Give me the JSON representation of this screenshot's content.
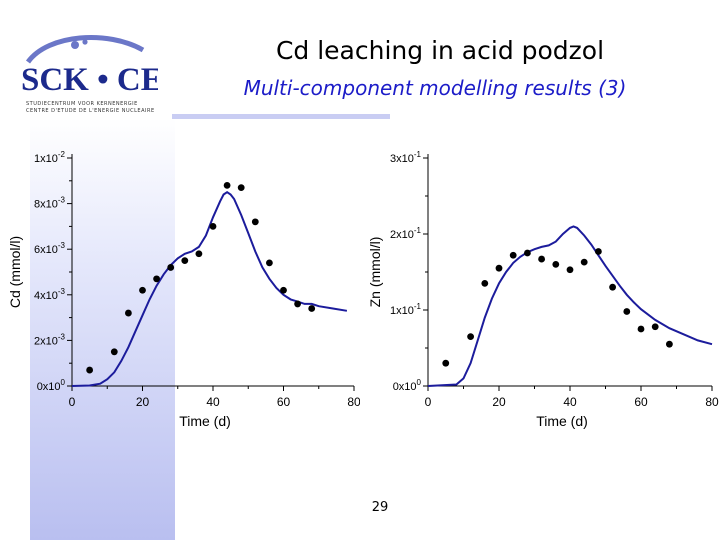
{
  "slide": {
    "title": "Cd leaching in acid podzol",
    "subtitle": "Multi-component modelling results (3)",
    "page_number": "29"
  },
  "logo": {
    "text": "SCK • CEN",
    "subtext_line1": "STUDIECENTRUM VOOR KERNENERGIE",
    "subtext_line2": "CENTRE D'ETUDE DE L'ENERGIE NUCLEAIRE",
    "colors": {
      "primary": "#1c2a8c",
      "accent": "#6b77c8"
    }
  },
  "colors": {
    "model_line": "#1c1c9c",
    "points": "#000000",
    "title": "#000000",
    "subtitle": "#1c1cc8",
    "band": "#b9bff0"
  },
  "chart_data": [
    {
      "type": "line",
      "xlabel": "Time (d)",
      "ylabel": "Cd (mmol/l)",
      "xlim": [
        0,
        80
      ],
      "ylim": [
        0,
        0.01
      ],
      "x_ticks": [
        0,
        20,
        40,
        60,
        80
      ],
      "x_tick_labels": [
        "0",
        "20",
        "40",
        "60",
        "80"
      ],
      "y_ticks": [
        0,
        0.002,
        0.004,
        0.006,
        0.008,
        0.01
      ],
      "y_tick_labels": [
        {
          "mant": "0x10",
          "exp": "0"
        },
        {
          "mant": "2x10",
          "exp": "-3"
        },
        {
          "mant": "4x10",
          "exp": "-3"
        },
        {
          "mant": "6x10",
          "exp": "-3"
        },
        {
          "mant": "8x10",
          "exp": "-3"
        },
        {
          "mant": "1x10",
          "exp": "-2"
        }
      ],
      "grid": false,
      "series": [
        {
          "kind": "line",
          "x": [
            0,
            5,
            8,
            10,
            12,
            14,
            16,
            18,
            20,
            22,
            24,
            26,
            28,
            30,
            32,
            34,
            36,
            38,
            40,
            42,
            43,
            44,
            45,
            46,
            48,
            50,
            52,
            54,
            56,
            58,
            60,
            62,
            64,
            66,
            68,
            70,
            74,
            78
          ],
          "y": [
            0,
            2e-05,
            0.0001,
            0.0003,
            0.0006,
            0.0011,
            0.0017,
            0.0024,
            0.0031,
            0.0038,
            0.0044,
            0.0049,
            0.0053,
            0.0056,
            0.0058,
            0.0059,
            0.0061,
            0.0066,
            0.0074,
            0.0081,
            0.0084,
            0.0085,
            0.0084,
            0.0082,
            0.0075,
            0.0067,
            0.0059,
            0.0052,
            0.0047,
            0.0043,
            0.004,
            0.0038,
            0.0037,
            0.0036,
            0.0036,
            0.0035,
            0.0034,
            0.0033
          ]
        },
        {
          "kind": "scatter",
          "x": [
            5,
            12,
            16,
            20,
            24,
            28,
            32,
            36,
            40,
            44,
            48,
            52,
            56,
            60,
            64,
            68
          ],
          "y": [
            0.0007,
            0.0015,
            0.0032,
            0.0042,
            0.0047,
            0.0052,
            0.0055,
            0.0058,
            0.007,
            0.0088,
            0.0087,
            0.0072,
            0.0054,
            0.0042,
            0.0036,
            0.0034
          ]
        }
      ]
    },
    {
      "type": "line",
      "xlabel": "Time (d)",
      "ylabel": "Zn (mmol/l)",
      "xlim": [
        0,
        80
      ],
      "ylim": [
        0,
        0.3
      ],
      "x_ticks": [
        0,
        20,
        40,
        60,
        80
      ],
      "x_tick_labels": [
        "0",
        "20",
        "40",
        "60",
        "80"
      ],
      "y_ticks": [
        0,
        0.1,
        0.2,
        0.3
      ],
      "y_tick_labels": [
        {
          "mant": "0x10",
          "exp": "0"
        },
        {
          "mant": "1x10",
          "exp": "-1"
        },
        {
          "mant": "2x10",
          "exp": "-1"
        },
        {
          "mant": "3x10",
          "exp": "-1"
        }
      ],
      "grid": false,
      "series": [
        {
          "kind": "line",
          "x": [
            0,
            8,
            10,
            12,
            14,
            16,
            18,
            20,
            22,
            24,
            26,
            28,
            30,
            32,
            34,
            36,
            38,
            40,
            41,
            42,
            44,
            46,
            48,
            50,
            52,
            54,
            56,
            58,
            60,
            64,
            68,
            72,
            76,
            80
          ],
          "y": [
            0,
            0.002,
            0.01,
            0.03,
            0.06,
            0.09,
            0.115,
            0.135,
            0.15,
            0.162,
            0.17,
            0.176,
            0.18,
            0.183,
            0.185,
            0.19,
            0.2,
            0.208,
            0.21,
            0.208,
            0.198,
            0.186,
            0.172,
            0.158,
            0.145,
            0.132,
            0.12,
            0.11,
            0.101,
            0.087,
            0.076,
            0.068,
            0.06,
            0.055
          ]
        },
        {
          "kind": "scatter",
          "x": [
            5,
            12,
            16,
            20,
            24,
            28,
            32,
            36,
            40,
            44,
            48,
            52,
            56,
            60,
            64,
            68
          ],
          "y": [
            0.03,
            0.065,
            0.135,
            0.155,
            0.172,
            0.175,
            0.167,
            0.16,
            0.153,
            0.163,
            0.177,
            0.13,
            0.098,
            0.075,
            0.078,
            0.055
          ]
        }
      ]
    }
  ]
}
